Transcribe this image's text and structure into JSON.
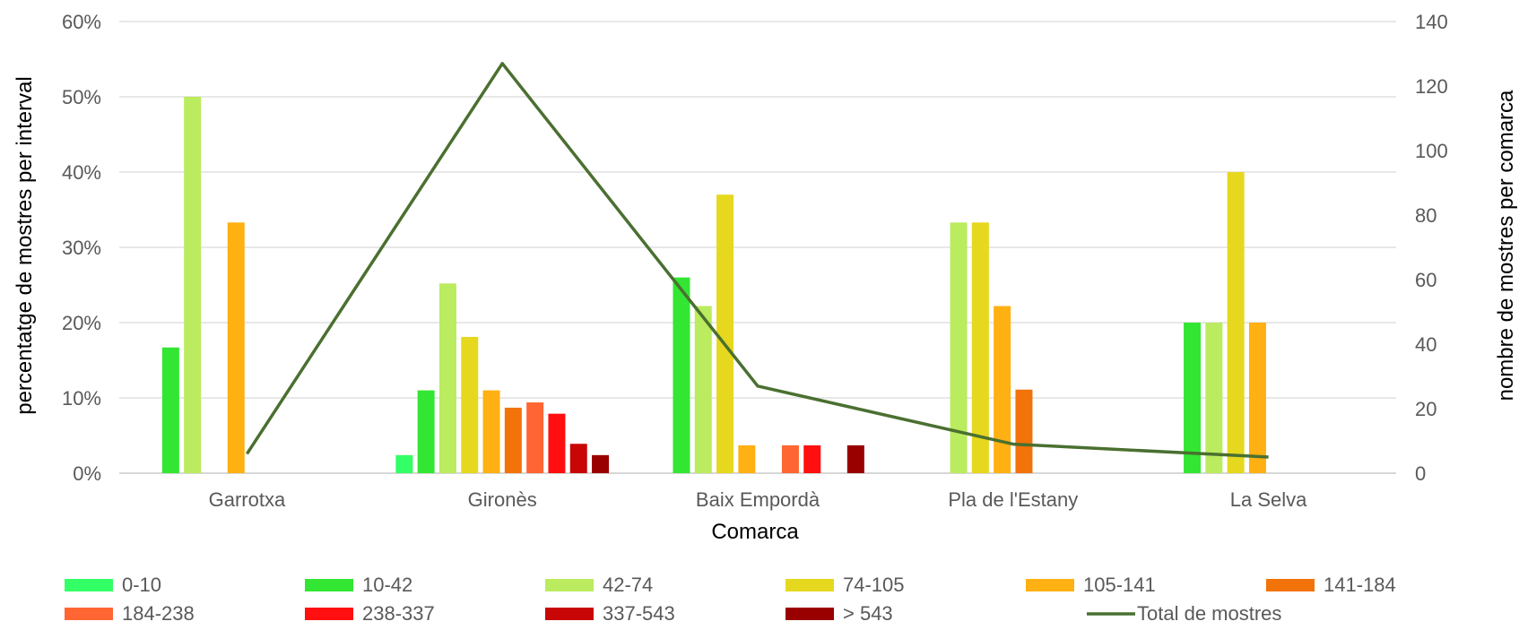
{
  "chart_data": {
    "type": "bar",
    "xlabel": "Comarca",
    "ylabel_left": "percentatge de  mostres per interval",
    "ylabel_right": "nombre de mostres per comarca",
    "categories": [
      "Garrotxa",
      "Gironès",
      "Baix Empordà",
      "Pla de l'Estany",
      "La Selva"
    ],
    "ylim_left": [
      0,
      60
    ],
    "yticks_left": [
      "0%",
      "10%",
      "20%",
      "30%",
      "40%",
      "50%",
      "60%"
    ],
    "ylim_right": [
      0,
      140
    ],
    "yticks_right": [
      "0",
      "20",
      "40",
      "60",
      "80",
      "100",
      "120",
      "140"
    ],
    "grid": true,
    "legend_position": "bottom",
    "series": [
      {
        "name": "0-10",
        "color": "#33FF66",
        "values": [
          0,
          2.4,
          0,
          0,
          0
        ]
      },
      {
        "name": "10-42",
        "color": "#33E633",
        "values": [
          16.7,
          11.0,
          26.0,
          0,
          20
        ]
      },
      {
        "name": "42-74",
        "color": "#BBEB5E",
        "values": [
          50,
          25.2,
          22.2,
          33.3,
          20
        ]
      },
      {
        "name": "74-105",
        "color": "#E6D81E",
        "values": [
          0,
          18.1,
          37.0,
          33.3,
          40
        ]
      },
      {
        "name": "105-141",
        "color": "#FFB012",
        "values": [
          33.3,
          11.0,
          3.7,
          22.2,
          20
        ]
      },
      {
        "name": "141-184",
        "color": "#F27309",
        "values": [
          0,
          8.7,
          0,
          11.1,
          0
        ]
      },
      {
        "name": "184-238",
        "color": "#FF6633",
        "values": [
          0,
          9.4,
          3.7,
          0,
          0
        ]
      },
      {
        "name": "238-337",
        "color": "#FF0F0F",
        "values": [
          0,
          7.9,
          3.7,
          0,
          0
        ]
      },
      {
        "name": "337-543",
        "color": "#C90606",
        "values": [
          0,
          3.9,
          0,
          0,
          0
        ]
      },
      {
        "name": "> 543",
        "color": "#990000",
        "values": [
          0,
          2.4,
          3.7,
          0,
          0
        ]
      }
    ],
    "line_series": {
      "name": "Total de mostres",
      "color": "#4A7030",
      "axis": "right",
      "values": [
        6,
        127,
        27,
        9,
        5
      ]
    }
  }
}
